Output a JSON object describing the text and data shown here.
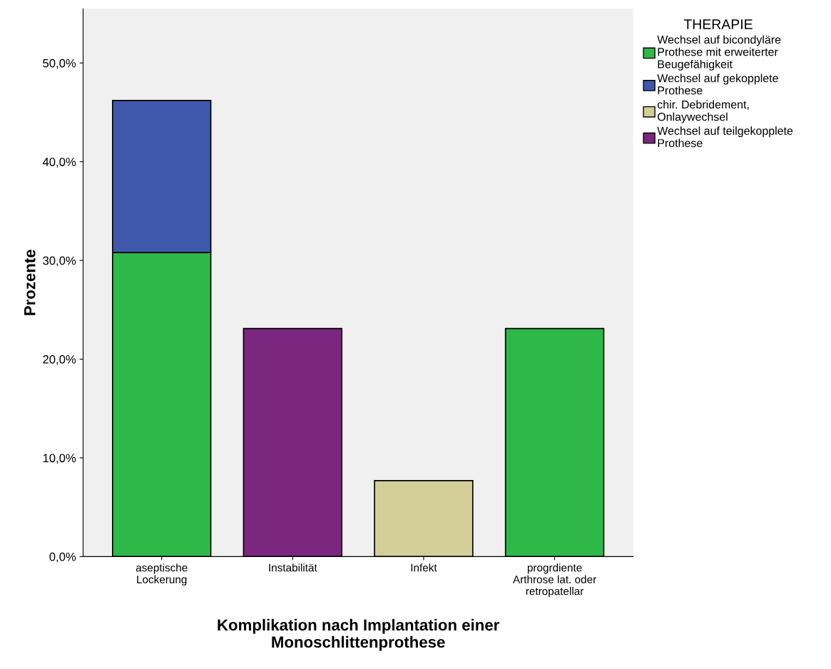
{
  "chart_data": {
    "type": "bar",
    "stacked": true,
    "xlabel": "Komplikation nach Implantation einer\nMonoschlittenprothese",
    "ylabel": "Prozente",
    "legend_title": "THERAPIE",
    "categories": [
      "aseptische\nLockerung",
      "Instabilität",
      "Infekt",
      "progrdiente\nArthrose lat. oder\nretropatellar"
    ],
    "series": [
      {
        "name": "Wechsel auf bicondyläre\nProthese mit erweiterter\nBeugefähigkeit",
        "color": "#2eb848",
        "values": [
          30.8,
          null,
          null,
          23.1
        ]
      },
      {
        "name": "Wechsel auf gekopplete\nProthese",
        "color": "#3e58ac",
        "values": [
          15.4,
          null,
          null,
          null
        ]
      },
      {
        "name": "chir. Debridement,\nOnlaywechsel",
        "color": "#d3ce97",
        "values": [
          null,
          null,
          7.7,
          null
        ]
      },
      {
        "name": "Wechsel auf teilgekopplete\nProthese",
        "color": "#7b277f",
        "values": [
          null,
          23.1,
          null,
          null
        ]
      }
    ],
    "ylim": [
      0,
      55.5
    ],
    "yticks": [
      {
        "value": 0,
        "label": "0,0%"
      },
      {
        "value": 10,
        "label": "10,0%"
      },
      {
        "value": 20,
        "label": "20,0%"
      },
      {
        "value": 30,
        "label": "30,0%"
      },
      {
        "value": 40,
        "label": "40,0%"
      },
      {
        "value": 50,
        "label": "50,0%"
      }
    ],
    "grid": false,
    "legend": "right"
  }
}
